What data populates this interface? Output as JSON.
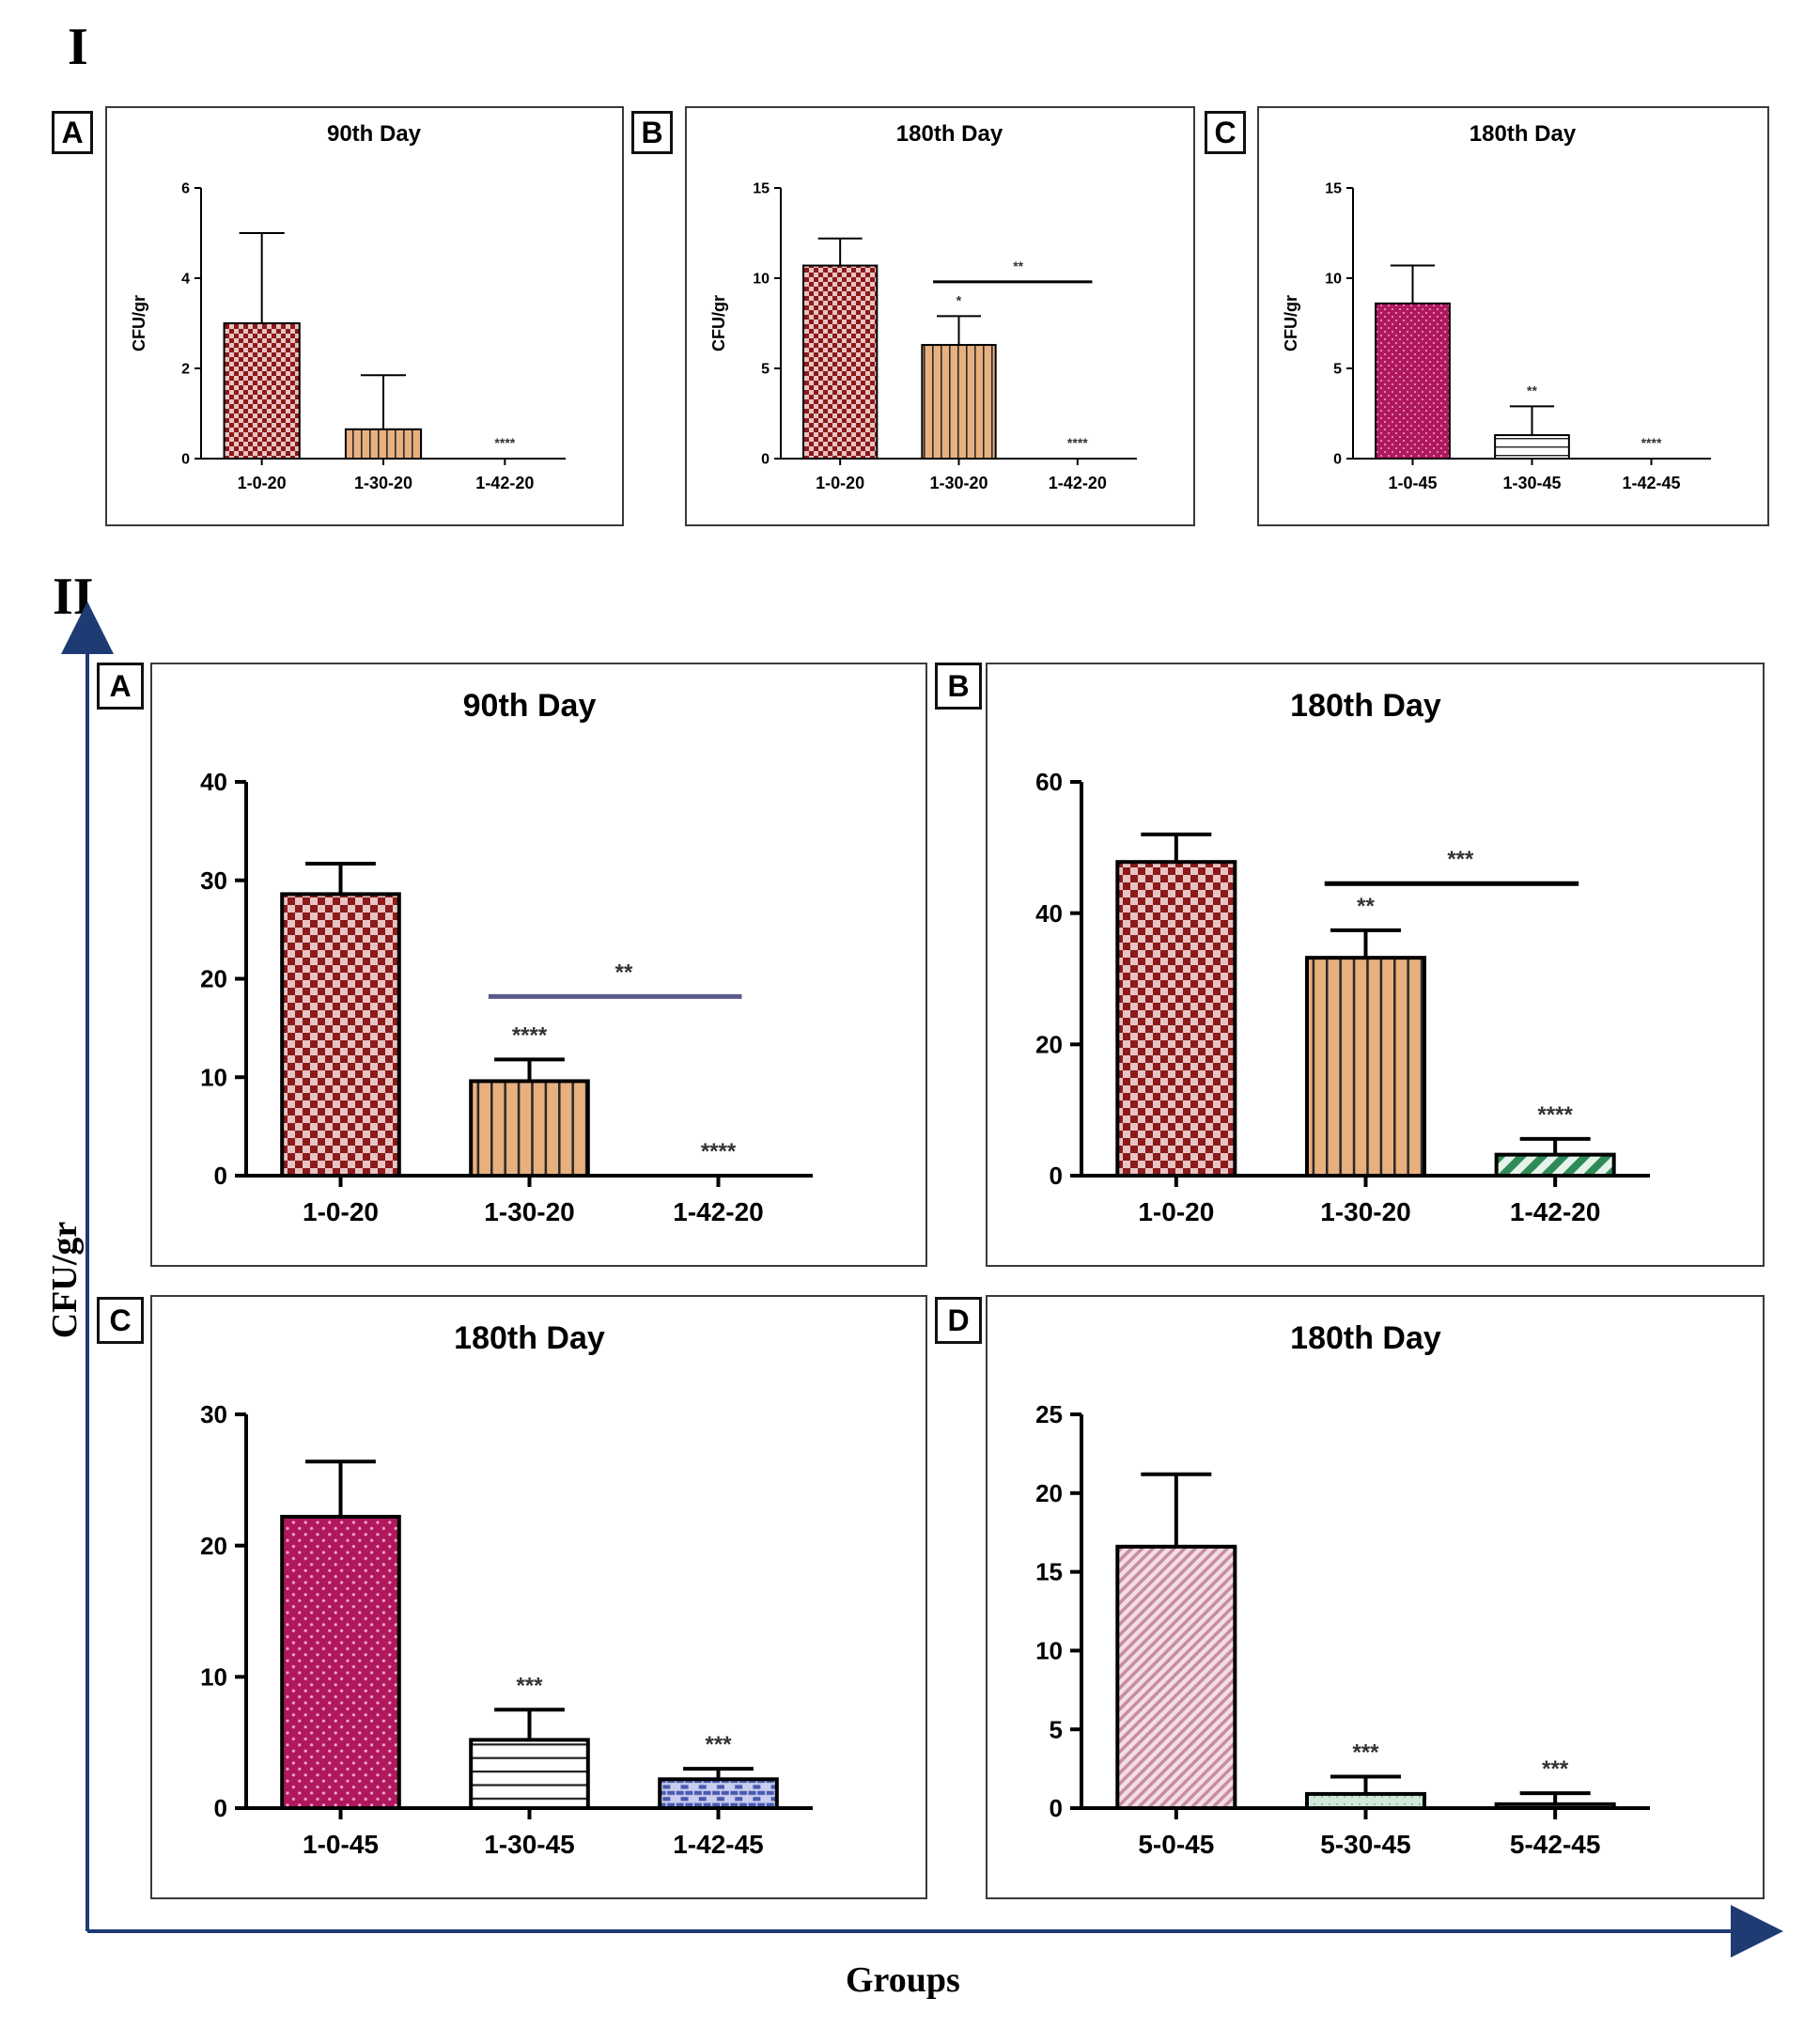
{
  "section_labels": {
    "first": "I",
    "second": "II"
  },
  "section_II_axes": {
    "ylabel": "CFU/gr",
    "xlabel": "Groups"
  },
  "colors": {
    "red_check": "#8b1a1a",
    "orange_stripes": "#e8b07f",
    "magenta_dots": "#b0185e",
    "white_hstripes": "#ffffff",
    "blue_brick": "#4a5ab0",
    "green_diag": "#2e8b57",
    "pink_diag": "#c78ca2",
    "pale_green": "#cfe8d8",
    "axis_arrow": "#1f3b73",
    "significance_line_purple": "#5a5a8c"
  },
  "chart_data": [
    {
      "id": "I-A",
      "panel_letter": "A",
      "type": "bar",
      "title": "90th Day",
      "ylabel": "CFU/gr",
      "xlabel": "",
      "categories": [
        "1-0-20",
        "1-30-20",
        "1-42-20"
      ],
      "values": [
        3.0,
        0.65,
        0
      ],
      "errors": [
        2.0,
        1.2,
        0
      ],
      "ylim": [
        0,
        6
      ],
      "yticks": [
        0,
        2,
        4,
        6
      ],
      "patterns": [
        "red_check",
        "orange_stripes",
        "none"
      ],
      "significance": [
        "",
        "",
        "****"
      ],
      "brackets": [],
      "grid": false
    },
    {
      "id": "I-B",
      "panel_letter": "B",
      "type": "bar",
      "title": "180th Day",
      "ylabel": "CFU/gr",
      "xlabel": "",
      "categories": [
        "1-0-20",
        "1-30-20",
        "1-42-20"
      ],
      "values": [
        10.7,
        6.3,
        0
      ],
      "errors": [
        1.5,
        1.6,
        0
      ],
      "ylim": [
        0,
        15
      ],
      "yticks": [
        0,
        5,
        10,
        15
      ],
      "patterns": [
        "red_check",
        "orange_stripes",
        "none"
      ],
      "significance": [
        "",
        "*",
        "****"
      ],
      "brackets": [
        {
          "from": 1,
          "to": 2,
          "y": 9.8,
          "label": "**",
          "color": "#000"
        }
      ],
      "grid": false
    },
    {
      "id": "I-C",
      "panel_letter": "C",
      "type": "bar",
      "title": "180th Day",
      "ylabel": "CFU/gr",
      "xlabel": "",
      "categories": [
        "1-0-45",
        "1-30-45",
        "1-42-45"
      ],
      "values": [
        8.6,
        1.3,
        0
      ],
      "errors": [
        2.1,
        1.6,
        0
      ],
      "ylim": [
        0,
        15
      ],
      "yticks": [
        0,
        5,
        10,
        15
      ],
      "patterns": [
        "magenta_dots",
        "white_hstripes",
        "none"
      ],
      "significance": [
        "",
        "**",
        "****"
      ],
      "brackets": [],
      "grid": false
    },
    {
      "id": "II-A",
      "panel_letter": "A",
      "type": "bar",
      "title": "90th Day",
      "ylabel": "",
      "xlabel": "",
      "categories": [
        "1-0-20",
        "1-30-20",
        "1-42-20"
      ],
      "values": [
        28.6,
        9.6,
        0
      ],
      "errors": [
        3.1,
        2.2,
        0
      ],
      "ylim": [
        0,
        40
      ],
      "yticks": [
        0,
        10,
        20,
        30,
        40
      ],
      "patterns": [
        "red_check",
        "orange_stripes",
        "none"
      ],
      "significance": [
        "",
        "****",
        "****"
      ],
      "brackets": [
        {
          "from": 1,
          "to": 2,
          "y": 18.2,
          "label": "**",
          "color": "#5a5a8c"
        }
      ],
      "grid": false
    },
    {
      "id": "II-B",
      "panel_letter": "B",
      "type": "bar",
      "title": "180th Day",
      "ylabel": "",
      "xlabel": "",
      "categories": [
        "1-0-20",
        "1-30-20",
        "1-42-20"
      ],
      "values": [
        47.8,
        33.2,
        3.2
      ],
      "errors": [
        4.2,
        4.2,
        2.4
      ],
      "ylim": [
        0,
        60
      ],
      "yticks": [
        0,
        20,
        40,
        60
      ],
      "patterns": [
        "red_check",
        "orange_stripes",
        "green_diag"
      ],
      "significance": [
        "",
        "**",
        "****"
      ],
      "brackets": [
        {
          "from": 1,
          "to": 2,
          "y": 44.5,
          "label": "***",
          "color": "#000"
        }
      ],
      "grid": false
    },
    {
      "id": "II-C",
      "panel_letter": "C",
      "type": "bar",
      "title": "180th Day",
      "ylabel": "",
      "xlabel": "",
      "categories": [
        "1-0-45",
        "1-30-45",
        "1-42-45"
      ],
      "values": [
        22.2,
        5.2,
        2.2
      ],
      "errors": [
        4.2,
        2.3,
        0.8
      ],
      "ylim": [
        0,
        30
      ],
      "yticks": [
        0,
        10,
        20,
        30
      ],
      "patterns": [
        "magenta_dots",
        "white_hstripes",
        "blue_brick"
      ],
      "significance": [
        "",
        "***",
        "***"
      ],
      "brackets": [],
      "grid": false
    },
    {
      "id": "II-D",
      "panel_letter": "D",
      "type": "bar",
      "title": "180th Day",
      "ylabel": "",
      "xlabel": "",
      "categories": [
        "5-0-45",
        "5-30-45",
        "5-42-45"
      ],
      "values": [
        16.6,
        0.9,
        0.25
      ],
      "errors": [
        4.6,
        1.1,
        0.7
      ],
      "ylim": [
        0,
        25
      ],
      "yticks": [
        0,
        5,
        10,
        15,
        20,
        25
      ],
      "patterns": [
        "pink_diag",
        "pale_green",
        "none"
      ],
      "significance": [
        "",
        "***",
        "***"
      ],
      "brackets": [],
      "grid": false
    }
  ]
}
